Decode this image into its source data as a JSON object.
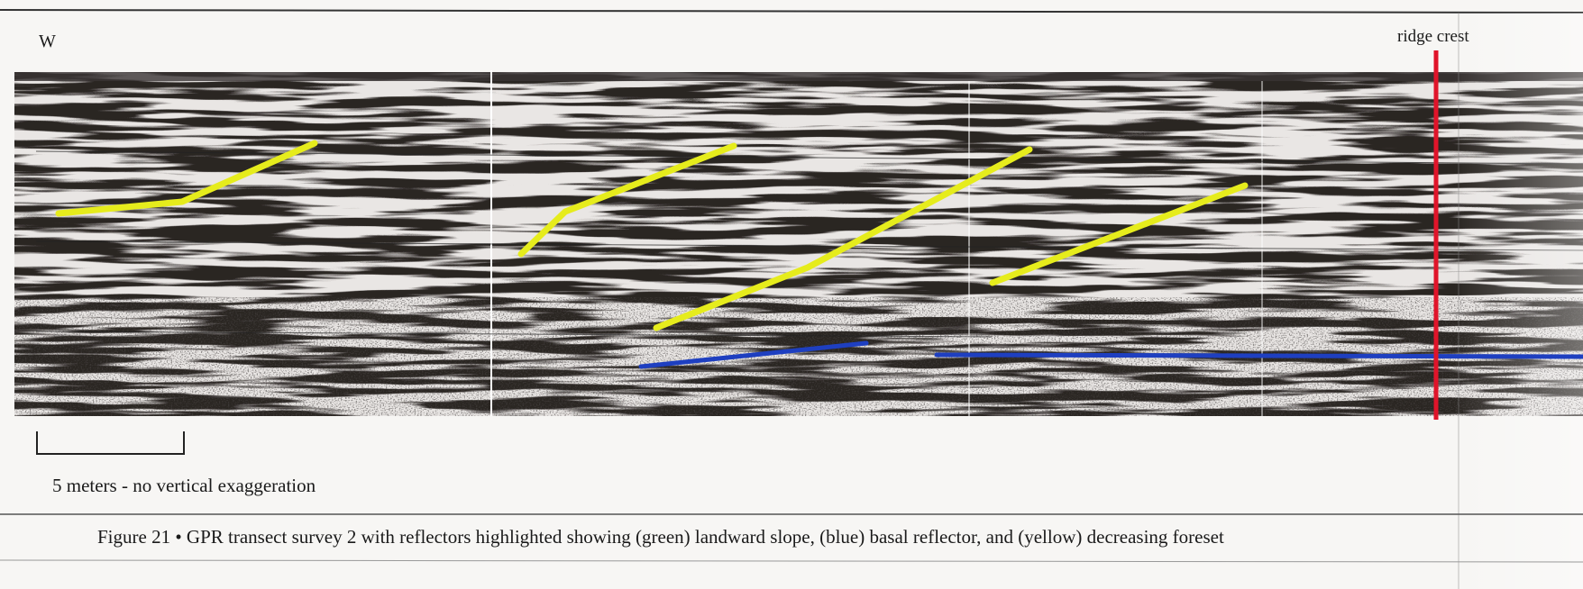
{
  "labels": {
    "west": "W",
    "ridge_crest": "ridge crest"
  },
  "scale_bar": {
    "label": "5 meters - no vertical exaggeration"
  },
  "caption": "Figure 21 • GPR transect survey 2 with reflectors highlighted showing (green) landward slope, (blue) basal reflector, and (yellow) decreasing foreset"
}
